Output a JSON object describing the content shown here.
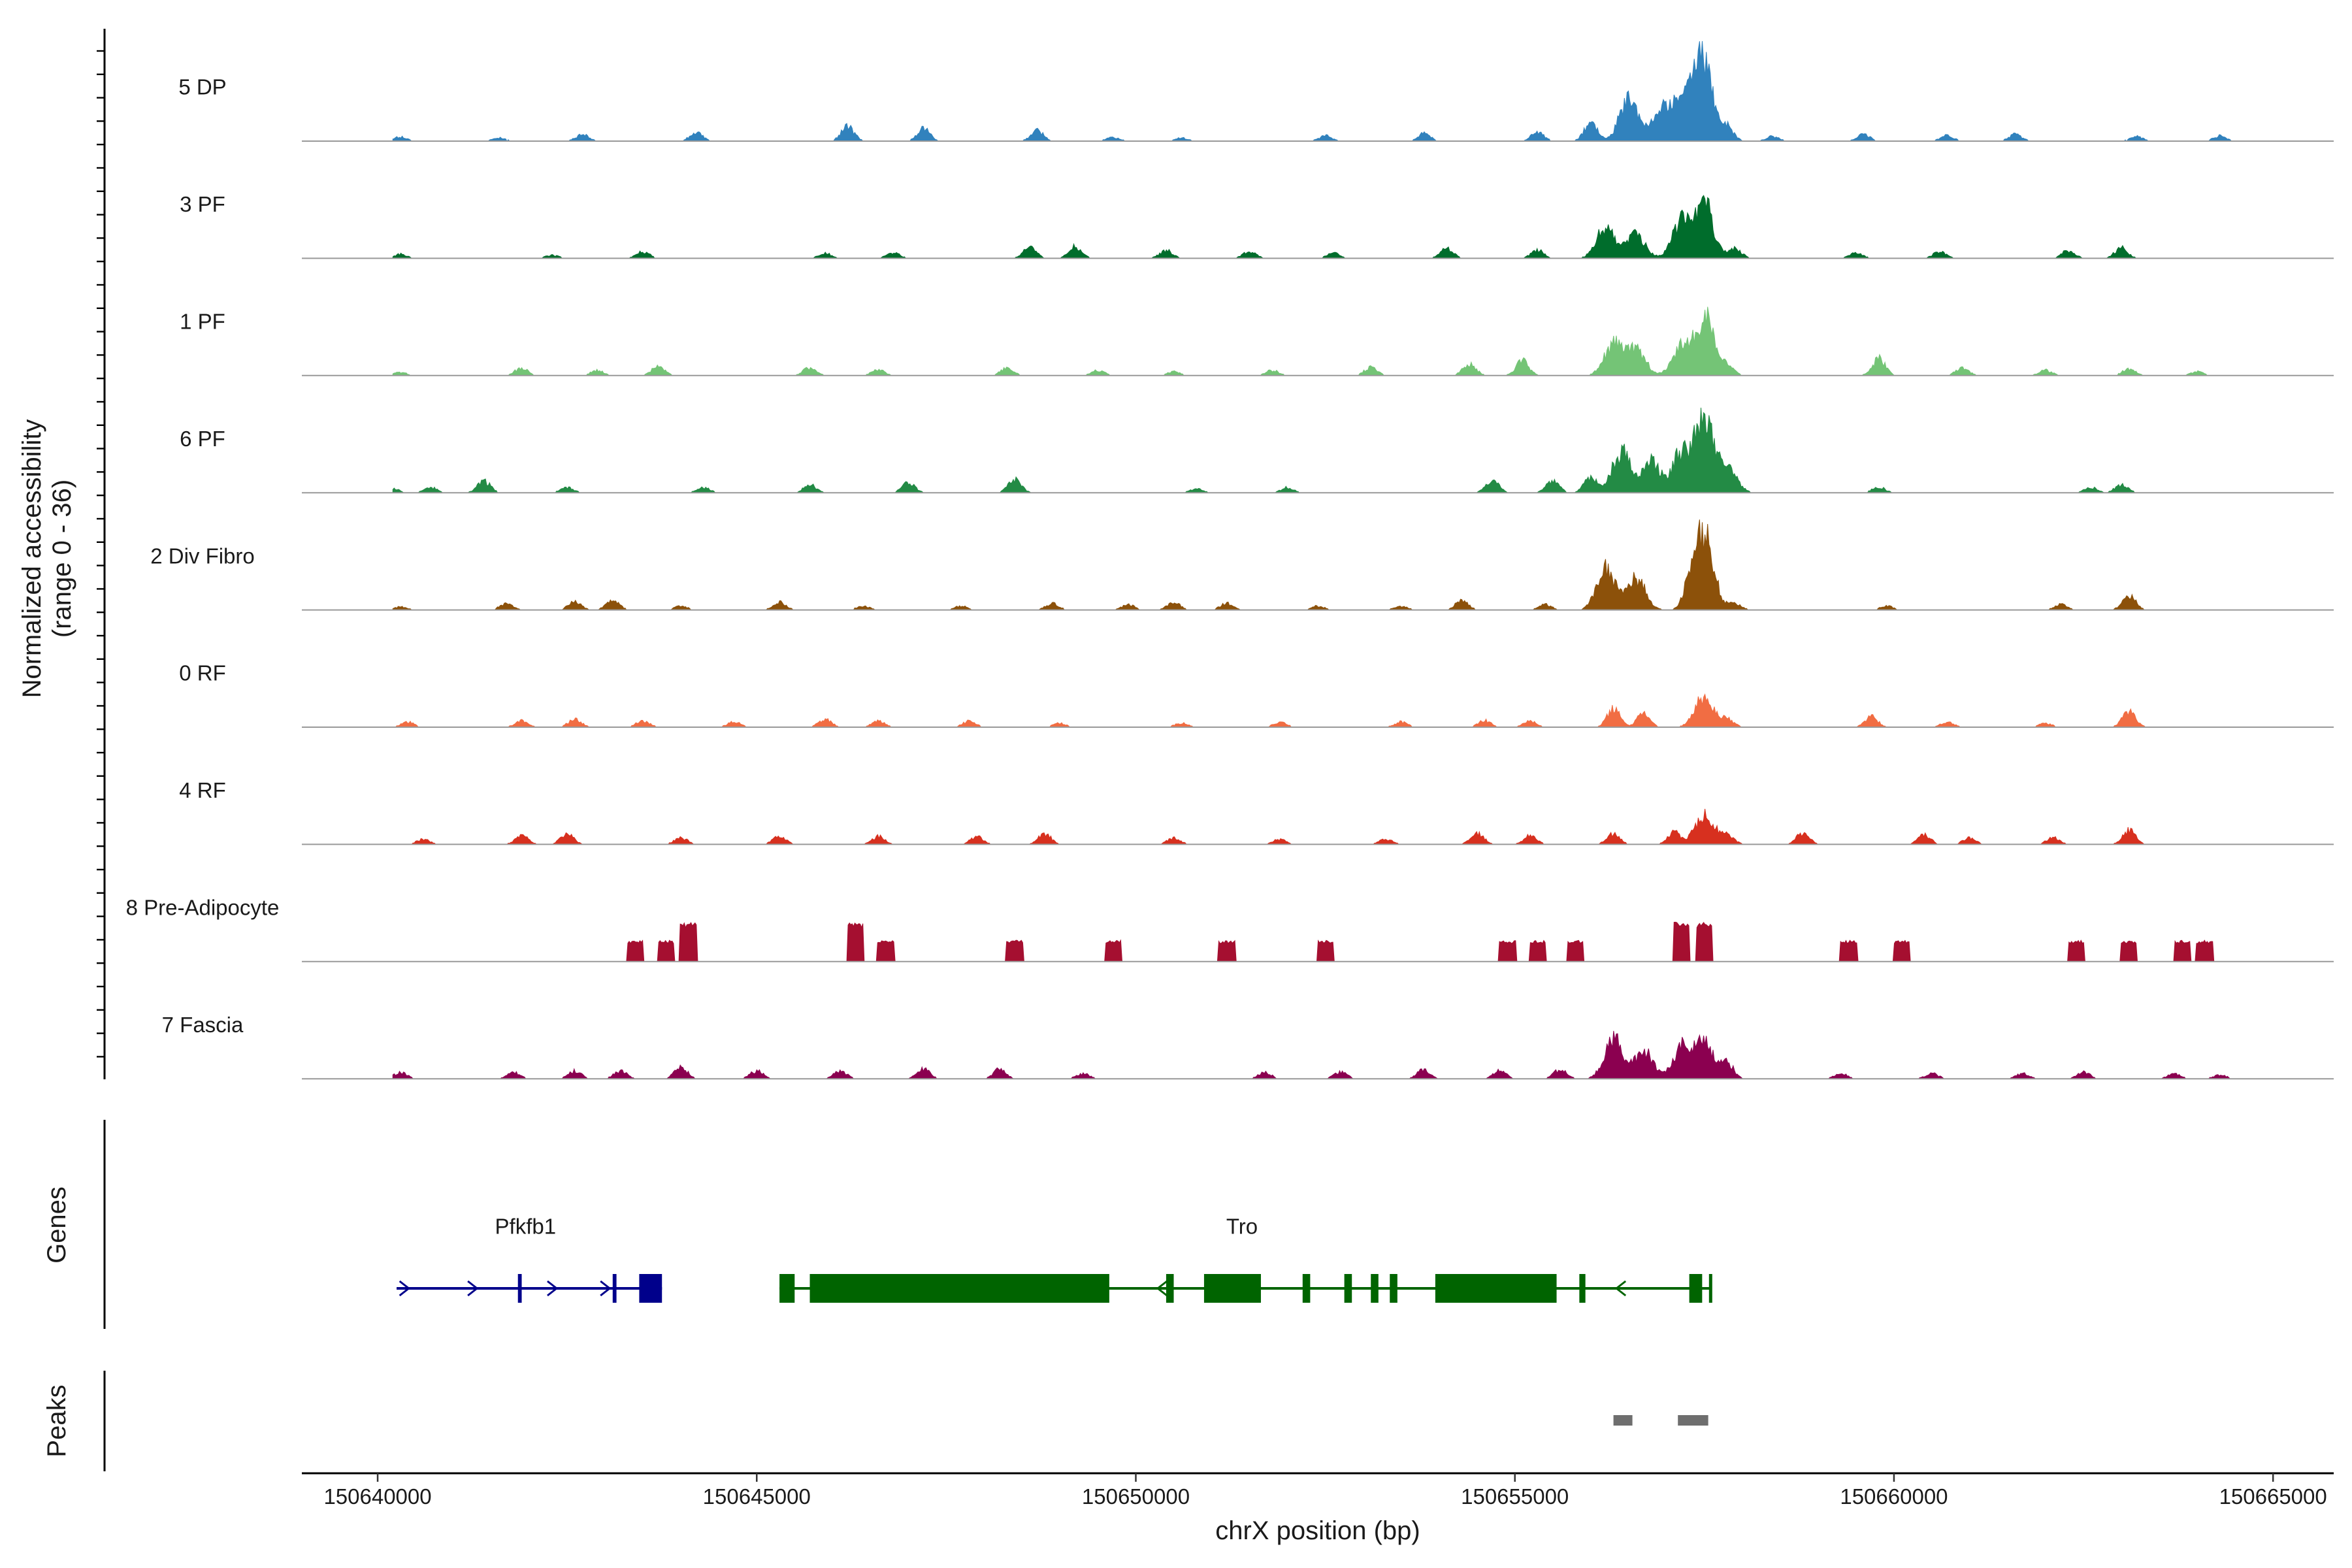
{
  "chart_data": {
    "type": "area",
    "title": "",
    "coverage": {
      "ylabel_line1": "Normalized accessibility",
      "ylabel_line2": "(range 0 - 36)",
      "ylim": [
        0,
        36
      ],
      "tracks": [
        {
          "name": "5 DP",
          "color": "#3182bd",
          "peaks": [
            [
              150640300,
              1.6
            ],
            [
              150641600,
              1.2
            ],
            [
              150642700,
              2.5
            ],
            [
              150644200,
              3.2
            ],
            [
              150646200,
              5.5
            ],
            [
              150647200,
              4.8
            ],
            [
              150648700,
              4.0
            ],
            [
              150649700,
              1.5
            ],
            [
              150650600,
              1.2
            ],
            [
              150652500,
              2.0
            ],
            [
              150653800,
              2.8
            ],
            [
              150655300,
              3.5
            ],
            [
              150656000,
              7.0
            ],
            [
              150656500,
              16.0
            ],
            [
              150656900,
              10.0
            ],
            [
              150657100,
              9.0
            ],
            [
              150657300,
              12.0
            ],
            [
              150657500,
              30.0
            ],
            [
              150657800,
              5.0
            ],
            [
              150658400,
              1.8
            ],
            [
              150659600,
              2.5
            ],
            [
              150660700,
              2.2
            ],
            [
              150661600,
              2.5
            ],
            [
              150663200,
              1.8
            ],
            [
              150664300,
              2.0
            ]
          ]
        },
        {
          "name": "3 PF",
          "color": "#006d2c",
          "peaks": [
            [
              150640300,
              1.6
            ],
            [
              150642300,
              1.2
            ],
            [
              150643500,
              2.5
            ],
            [
              150645900,
              2.0
            ],
            [
              150646800,
              2.2
            ],
            [
              150648600,
              4.2
            ],
            [
              150649200,
              4.5
            ],
            [
              150650400,
              3.0
            ],
            [
              150651500,
              2.5
            ],
            [
              150652600,
              2.0
            ],
            [
              150654100,
              4.0
            ],
            [
              150655300,
              3.0
            ],
            [
              150656200,
              12.0
            ],
            [
              150656600,
              9.0
            ],
            [
              150657200,
              14.0
            ],
            [
              150657500,
              20.0
            ],
            [
              150657900,
              4.0
            ],
            [
              150659500,
              2.2
            ],
            [
              150660600,
              2.5
            ],
            [
              150662300,
              3.0
            ],
            [
              150663000,
              4.0
            ]
          ]
        },
        {
          "name": "1 PF",
          "color": "#74c476",
          "peaks": [
            [
              150640300,
              1.2
            ],
            [
              150641900,
              3.0
            ],
            [
              150642900,
              2.0
            ],
            [
              150643700,
              3.5
            ],
            [
              150645700,
              3.0
            ],
            [
              150646600,
              2.2
            ],
            [
              150648300,
              3.0
            ],
            [
              150649500,
              2.0
            ],
            [
              150650500,
              1.5
            ],
            [
              150651800,
              2.0
            ],
            [
              150653100,
              3.0
            ],
            [
              150654400,
              4.5
            ],
            [
              150655100,
              5.5
            ],
            [
              150656300,
              12.0
            ],
            [
              150656600,
              10.0
            ],
            [
              150657200,
              11.0
            ],
            [
              150657500,
              22.0
            ],
            [
              150657800,
              4.0
            ],
            [
              150659800,
              6.5
            ],
            [
              150660900,
              3.0
            ],
            [
              150662000,
              2.0
            ],
            [
              150663100,
              2.5
            ],
            [
              150664000,
              1.5
            ]
          ]
        },
        {
          "name": "6 PF",
          "color": "#238b45",
          "peaks": [
            [
              150640200,
              1.5
            ],
            [
              150640700,
              2.0
            ],
            [
              150641400,
              4.5
            ],
            [
              150642500,
              2.0
            ],
            [
              150644300,
              2.0
            ],
            [
              150645700,
              3.0
            ],
            [
              150647000,
              4.0
            ],
            [
              150648400,
              5.0
            ],
            [
              150650800,
              1.5
            ],
            [
              150652000,
              2.0
            ],
            [
              150654700,
              5.0
            ],
            [
              150655500,
              4.5
            ],
            [
              150656000,
              6.0
            ],
            [
              150656400,
              16.0
            ],
            [
              150656800,
              12.0
            ],
            [
              150657200,
              15.0
            ],
            [
              150657500,
              28.0
            ],
            [
              150657800,
              10.0
            ],
            [
              150659800,
              2.2
            ],
            [
              150662600,
              2.0
            ],
            [
              150663000,
              3.0
            ]
          ]
        },
        {
          "name": "2 Div Fibro",
          "color": "#8c510a",
          "peaks": [
            [
              150640300,
              1.2
            ],
            [
              150641700,
              2.5
            ],
            [
              150642600,
              3.0
            ],
            [
              150643100,
              4.0
            ],
            [
              150644000,
              1.5
            ],
            [
              150645300,
              3.0
            ],
            [
              150646400,
              1.5
            ],
            [
              150647700,
              1.5
            ],
            [
              150648900,
              2.5
            ],
            [
              150649900,
              2.0
            ],
            [
              150650500,
              3.0
            ],
            [
              150651200,
              2.5
            ],
            [
              150652400,
              1.5
            ],
            [
              150653500,
              1.5
            ],
            [
              150654300,
              3.5
            ],
            [
              150655400,
              2.0
            ],
            [
              150656200,
              16.0
            ],
            [
              150656600,
              12.0
            ],
            [
              150657300,
              8.0
            ],
            [
              150657500,
              30.0
            ],
            [
              150657900,
              2.5
            ],
            [
              150659900,
              1.5
            ],
            [
              150662200,
              2.0
            ],
            [
              150663100,
              5.5
            ]
          ]
        },
        {
          "name": "0 RF",
          "color": "#f16d43",
          "peaks": [
            [
              150640400,
              2.0
            ],
            [
              150641900,
              2.5
            ],
            [
              150642600,
              3.0
            ],
            [
              150643500,
              2.5
            ],
            [
              150644700,
              2.0
            ],
            [
              150645900,
              3.0
            ],
            [
              150646600,
              2.5
            ],
            [
              150647800,
              2.2
            ],
            [
              150649000,
              1.5
            ],
            [
              150650600,
              1.5
            ],
            [
              150651900,
              2.0
            ],
            [
              150653500,
              2.0
            ],
            [
              150654600,
              2.5
            ],
            [
              150655200,
              2.5
            ],
            [
              150656300,
              7.0
            ],
            [
              150656700,
              5.5
            ],
            [
              150657500,
              12.0
            ],
            [
              150657800,
              3.0
            ],
            [
              150659700,
              4.0
            ],
            [
              150660700,
              2.0
            ],
            [
              150662000,
              1.5
            ],
            [
              150663100,
              6.5
            ]
          ]
        },
        {
          "name": "4 RF",
          "color": "#d7301f",
          "peaks": [
            [
              150640600,
              2.0
            ],
            [
              150641900,
              3.5
            ],
            [
              150642500,
              4.0
            ],
            [
              150644000,
              2.5
            ],
            [
              150645300,
              3.0
            ],
            [
              150646600,
              3.0
            ],
            [
              150647900,
              3.0
            ],
            [
              150648800,
              4.0
            ],
            [
              150650500,
              2.5
            ],
            [
              150651900,
              2.0
            ],
            [
              150653300,
              2.0
            ],
            [
              150654500,
              4.5
            ],
            [
              150655200,
              3.5
            ],
            [
              150656300,
              4.0
            ],
            [
              150657100,
              4.5
            ],
            [
              150657500,
              12.0
            ],
            [
              150657800,
              4.0
            ],
            [
              150658800,
              4.5
            ],
            [
              150660400,
              3.5
            ],
            [
              150661000,
              2.5
            ],
            [
              150662100,
              2.5
            ],
            [
              150663100,
              5.5
            ]
          ]
        },
        {
          "name": "8 Pre-Adipocyte",
          "color": "#a50f30",
          "peaks": [
            [
              150643400,
              7.0
            ],
            [
              150643800,
              7.0
            ],
            [
              150644100,
              13.0
            ],
            [
              150646300,
              13.0
            ],
            [
              150646700,
              7.0
            ],
            [
              150648400,
              7.0
            ],
            [
              150649700,
              7.0
            ],
            [
              150651200,
              7.0
            ],
            [
              150652500,
              7.0
            ],
            [
              150654900,
              7.0
            ],
            [
              150655300,
              7.0
            ],
            [
              150655800,
              7.0
            ],
            [
              150657200,
              13.0
            ],
            [
              150657500,
              13.0
            ],
            [
              150659400,
              7.0
            ],
            [
              150660100,
              7.0
            ],
            [
              150662400,
              7.0
            ],
            [
              150663100,
              7.0
            ],
            [
              150663800,
              7.0
            ],
            [
              150664100,
              7.0
            ]
          ]
        },
        {
          "name": "7 Fascia",
          "color": "#8b0050",
          "peaks": [
            [
              150640300,
              2.5
            ],
            [
              150641800,
              2.5
            ],
            [
              150642600,
              3.0
            ],
            [
              150643200,
              3.0
            ],
            [
              150644000,
              4.5
            ],
            [
              150645000,
              3.0
            ],
            [
              150646100,
              3.0
            ],
            [
              150647200,
              4.0
            ],
            [
              150648200,
              3.5
            ],
            [
              150649300,
              2.0
            ],
            [
              150651700,
              2.5
            ],
            [
              150652700,
              2.5
            ],
            [
              150653800,
              3.5
            ],
            [
              150654800,
              3.0
            ],
            [
              150655600,
              3.5
            ],
            [
              150656300,
              15.0
            ],
            [
              150656700,
              11.0
            ],
            [
              150657200,
              12.0
            ],
            [
              150657500,
              14.0
            ],
            [
              150657800,
              6.0
            ],
            [
              150659300,
              2.0
            ],
            [
              150660500,
              2.0
            ],
            [
              150661700,
              2.0
            ],
            [
              150662500,
              2.5
            ],
            [
              150663700,
              2.0
            ],
            [
              150664300,
              1.5
            ]
          ]
        }
      ]
    },
    "genes": {
      "label": "Genes",
      "items": [
        {
          "name": "Pfkfb1",
          "color": "#00008b",
          "strand": "+",
          "start": 150640250,
          "end": 150643750,
          "exons": [
            [
              150641850,
              150641900
            ],
            [
              150643100,
              150643150
            ],
            [
              150643450,
              150643750
            ]
          ],
          "arrows": [
            150640350,
            150641250,
            150642300,
            150643000
          ]
        },
        {
          "name": "Tro",
          "color": "#006400",
          "strand": "-",
          "start": 150645300,
          "end": 150657600,
          "exons": [
            [
              150645300,
              150645500
            ],
            [
              150645700,
              150649650
            ],
            [
              150650400,
              150650500
            ],
            [
              150650900,
              150651650
            ],
            [
              150652200,
              150652300
            ],
            [
              150652750,
              150652850
            ],
            [
              150653100,
              150653200
            ],
            [
              150653350,
              150653450
            ],
            [
              150653950,
              150655550
            ],
            [
              150655850,
              150655930
            ],
            [
              150657300,
              150657470
            ],
            [
              150657560,
              150657600
            ]
          ],
          "arrows": [
            150650350,
            150656400
          ]
        }
      ]
    },
    "peaks_track": {
      "label": "Peaks",
      "regions": [
        [
          150656300,
          150656550
        ],
        [
          150657150,
          150657550
        ]
      ]
    },
    "x_axis": {
      "label": "chrX position (bp)",
      "xlim": [
        150639000,
        150665800
      ],
      "ticks": [
        150640000,
        150645000,
        150650000,
        150655000,
        150660000,
        150665000
      ]
    }
  }
}
